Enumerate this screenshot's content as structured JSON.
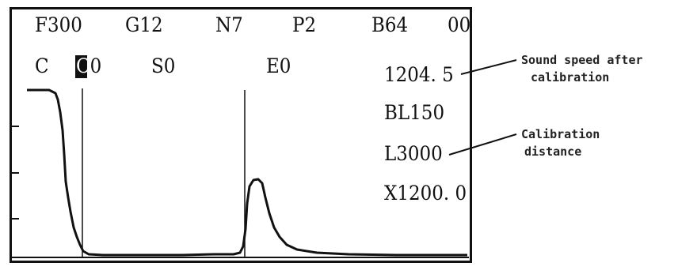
{
  "status_bar": {
    "f": "F300",
    "g": "G12",
    "n": "N7",
    "p": "P2",
    "b": "B64",
    "code": "00"
  },
  "cursor_row": {
    "c": "C",
    "c_value": "C0",
    "s": "S0",
    "e": "E0"
  },
  "readouts": {
    "sound_speed": "1204. 5",
    "bl": "BL150",
    "distance": "L3000",
    "x": "X1200. 0"
  },
  "callouts": {
    "sound_speed_line1": "Sound speed after",
    "sound_speed_line2": "calibration",
    "distance_line1": "Calibration",
    "distance_line2": "distance"
  },
  "colors": {
    "ink": "#111111",
    "background": "#ffffff"
  }
}
